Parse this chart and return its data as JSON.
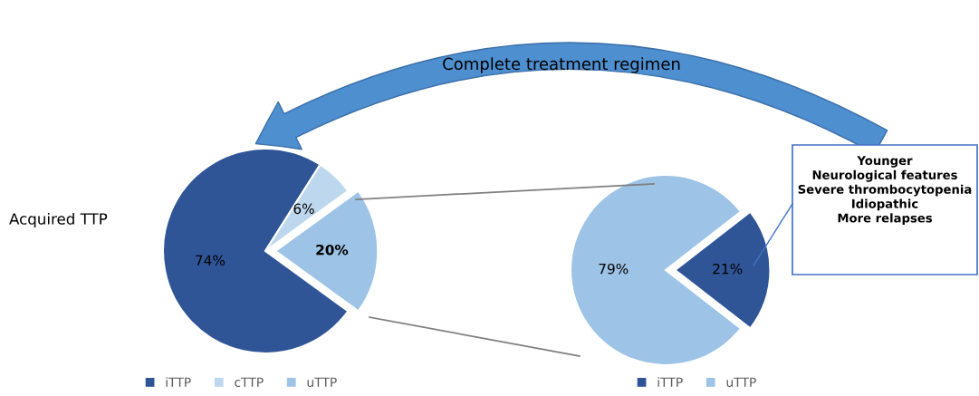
{
  "chart_data": [
    {
      "type": "pie",
      "categories": [
        "iTTP",
        "cTTP",
        "uTTP"
      ],
      "values": [
        74,
        6,
        20
      ],
      "colors": [
        "#2f5597",
        "#bdd7ee",
        "#9dc3e6"
      ],
      "value_labels": [
        "74%",
        "6%",
        "20%"
      ],
      "legend": "bottom",
      "annotations": [
        "Acquired TTP",
        "Complete treatment regimen"
      ]
    },
    {
      "type": "pie",
      "categories": [
        "iTTP",
        "uTTP"
      ],
      "values": [
        21,
        79
      ],
      "colors": [
        "#2f5597",
        "#9dc3e6"
      ],
      "value_labels": [
        "21%",
        "79%"
      ],
      "legend": "bottom",
      "annotations": [
        "Younger\nNeurological features\nSevere thrombocytopenia\nIdiopathic\nMore relapses"
      ]
    }
  ]
}
